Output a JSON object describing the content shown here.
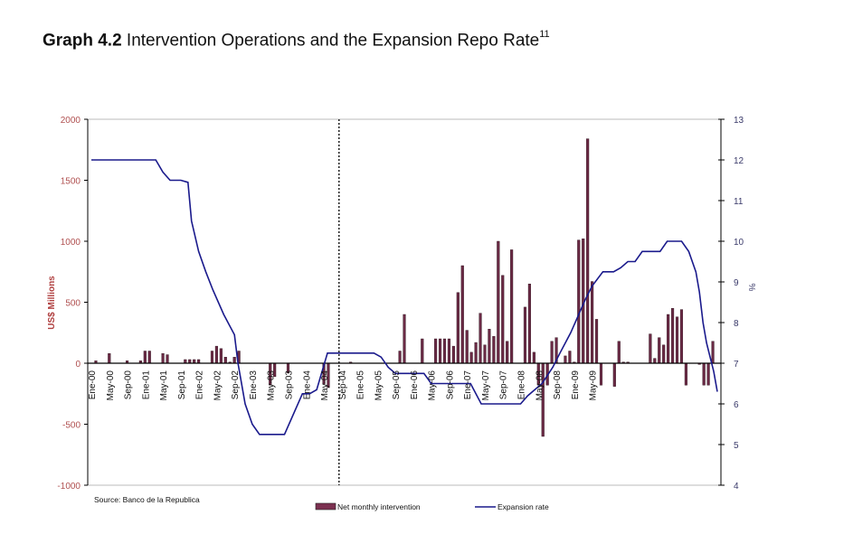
{
  "title": {
    "bold": "Graph 4.2",
    "text": " Intervention Operations and the Expansion Repo Rate",
    "footnote": "11"
  },
  "source": "Source: Banco de la Republica",
  "chart_data": {
    "type": "bar",
    "title": "Graph 4.2 Intervention Operations and the Expansion Repo Rate",
    "ylabel": "US$ Millions",
    "y2label": "%",
    "ylim": [
      -1000,
      2000
    ],
    "y2lim": [
      4,
      13
    ],
    "yticks": [
      "2000",
      "1500",
      "1000",
      "500",
      "0",
      "-500",
      "-1000"
    ],
    "y2ticks": [
      "13",
      "12",
      "11",
      "10",
      "9",
      "8",
      "7",
      "6",
      "5",
      "4"
    ],
    "xtick_labels": [
      "Ene-00",
      "May-00",
      "Sep-00",
      "Ene-01",
      "May-01",
      "Sep-01",
      "Ene-02",
      "May-02",
      "Sep-02",
      "Ene-03",
      "May-03",
      "Sep-03",
      "Ene-04",
      "May-04",
      "Sep-04",
      "Ene-05",
      "May-05",
      "Sep-05",
      "Ene-06",
      "May-06",
      "Sep-06",
      "Ene-07",
      "May-07",
      "Sep-07",
      "Ene-08",
      "May-08",
      "Sep-08",
      "Ene-09",
      "May-09"
    ],
    "annotation": "Dotted vertical line at Sep-04",
    "legend": {
      "position": "bottom",
      "entries": [
        "Net monthly intervention",
        "Expansion rate"
      ]
    },
    "colors": {
      "bars": "#6b2a45",
      "line": "#1a1a8c",
      "left_axis_text": "#b05050",
      "right_axis_text": "#3a3a6a"
    },
    "series": [
      {
        "name": "Net monthly intervention",
        "type": "bar",
        "axis": "left",
        "values": [
          0,
          20,
          0,
          0,
          80,
          0,
          0,
          0,
          20,
          0,
          0,
          20,
          100,
          100,
          0,
          0,
          80,
          70,
          0,
          0,
          0,
          30,
          30,
          30,
          30,
          0,
          0,
          100,
          140,
          120,
          50,
          10,
          50,
          100,
          0,
          0,
          0,
          0,
          0,
          0,
          -180,
          -110,
          0,
          0,
          -80,
          0,
          0,
          0,
          0,
          0,
          0,
          0,
          -170,
          -200,
          0,
          0,
          0,
          0,
          10,
          0,
          0,
          0,
          0,
          0,
          0,
          0,
          0,
          0,
          0,
          100,
          400,
          0,
          0,
          0,
          200,
          0,
          0,
          200,
          200,
          200,
          200,
          140,
          580,
          800,
          270,
          90,
          170,
          410,
          150,
          280,
          220,
          1000,
          720,
          180,
          930,
          0,
          0,
          460,
          650,
          90,
          -180,
          -600,
          -180,
          180,
          210,
          0,
          60,
          100,
          10,
          1010,
          1020,
          1840,
          670,
          360,
          -180,
          0,
          0,
          -190,
          180,
          10,
          10,
          0,
          0,
          0,
          0,
          240,
          40,
          210,
          150,
          400,
          450,
          380,
          440,
          -180,
          0,
          0,
          -10,
          -180,
          -180,
          180,
          0
        ],
        "note": "Monthly values estimated Ene-00 to May-09"
      },
      {
        "name": "Expansion rate",
        "type": "line",
        "axis": "right",
        "points": [
          [
            0,
            12
          ],
          [
            18,
            12
          ],
          [
            20,
            11.7
          ],
          [
            22,
            11.5
          ],
          [
            25,
            11.5
          ],
          [
            27,
            11.45
          ],
          [
            28,
            10.5
          ],
          [
            30,
            9.75
          ],
          [
            32,
            9.25
          ],
          [
            34,
            8.8
          ],
          [
            37,
            8.2
          ],
          [
            40,
            7.7
          ],
          [
            41,
            7.0
          ],
          [
            43,
            6.0
          ],
          [
            45,
            5.5
          ],
          [
            47,
            5.25
          ],
          [
            54,
            5.25
          ],
          [
            59,
            6.25
          ],
          [
            61,
            6.25
          ],
          [
            63,
            6.35
          ],
          [
            66,
            7.25
          ],
          [
            79,
            7.25
          ],
          [
            81,
            7.15
          ],
          [
            83,
            6.9
          ],
          [
            85,
            6.75
          ],
          [
            93,
            6.75
          ],
          [
            95,
            6.5
          ],
          [
            106,
            6.5
          ],
          [
            109,
            6.0
          ],
          [
            120,
            6.0
          ],
          [
            122,
            6.2
          ],
          [
            126,
            6.5
          ],
          [
            129,
            6.9
          ],
          [
            131,
            7.25
          ],
          [
            134,
            7.75
          ],
          [
            136,
            8.15
          ],
          [
            138,
            8.55
          ],
          [
            140,
            8.9
          ],
          [
            143,
            9.25
          ],
          [
            146,
            9.25
          ],
          [
            148,
            9.35
          ],
          [
            150,
            9.5
          ],
          [
            152,
            9.5
          ],
          [
            154,
            9.75
          ],
          [
            159,
            9.75
          ],
          [
            161,
            10.0
          ],
          [
            165,
            10.0
          ],
          [
            167,
            9.75
          ],
          [
            169,
            9.25
          ],
          [
            170,
            8.75
          ],
          [
            171,
            8.0
          ],
          [
            172,
            7.5
          ],
          [
            174,
            6.8
          ],
          [
            175,
            6.3
          ]
        ],
        "note": "x in bar-index units"
      }
    ]
  }
}
